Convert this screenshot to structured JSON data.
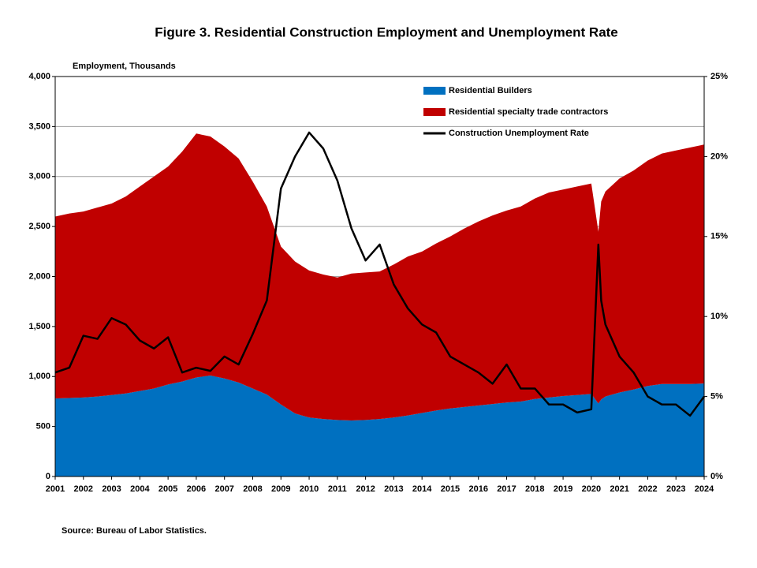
{
  "chart_data": {
    "type": "stacked-area-line",
    "title": "Figure 3. Residential Construction  Employment and Unemployment Rate",
    "y_label": "Employment, Thousands",
    "source": "Source: Bureau of Labor Statistics.",
    "x": [
      2001,
      2001.5,
      2002,
      2002.5,
      2003,
      2003.5,
      2004,
      2004.5,
      2005,
      2005.5,
      2006,
      2006.5,
      2007,
      2007.5,
      2008,
      2008.5,
      2009,
      2009.5,
      2010,
      2010.5,
      2011,
      2011.5,
      2012,
      2012.5,
      2013,
      2013.5,
      2014,
      2014.5,
      2015,
      2015.5,
      2016,
      2016.5,
      2017,
      2017.5,
      2018,
      2018.5,
      2019,
      2019.5,
      2020,
      2020.25,
      2020.35,
      2020.5,
      2021,
      2021.5,
      2022,
      2022.5,
      2023,
      2023.5,
      2024
    ],
    "series": [
      {
        "name": "Residential Builders",
        "color": "#0070c0",
        "kind": "area",
        "values": [
          780,
          785,
          790,
          800,
          815,
          830,
          855,
          880,
          920,
          950,
          990,
          1010,
          980,
          940,
          880,
          820,
          720,
          630,
          590,
          575,
          565,
          560,
          565,
          575,
          590,
          610,
          635,
          660,
          680,
          695,
          710,
          725,
          740,
          750,
          775,
          790,
          805,
          815,
          825,
          730,
          770,
          800,
          840,
          870,
          905,
          925,
          925,
          925,
          930
        ]
      },
      {
        "name": "Residential specialty trade contractors",
        "color": "#c00000",
        "kind": "area",
        "values": [
          1820,
          1845,
          1860,
          1890,
          1915,
          1970,
          2045,
          2120,
          2180,
          2300,
          2440,
          2390,
          2320,
          2240,
          2070,
          1880,
          1580,
          1520,
          1470,
          1445,
          1425,
          1470,
          1475,
          1475,
          1530,
          1590,
          1615,
          1670,
          1720,
          1785,
          1840,
          1885,
          1920,
          1950,
          2005,
          2050,
          2065,
          2085,
          2105,
          1720,
          1980,
          2050,
          2140,
          2190,
          2255,
          2305,
          2335,
          2365,
          2390
        ]
      },
      {
        "name": "Construction Unemployment Rate",
        "color": "#000000",
        "kind": "line",
        "axis": "y2",
        "values": [
          6.5,
          6.8,
          8.8,
          8.6,
          9.9,
          9.5,
          8.5,
          8.0,
          8.7,
          6.5,
          6.8,
          6.6,
          7.5,
          7.0,
          8.9,
          11.0,
          18.0,
          20.0,
          21.5,
          20.5,
          18.5,
          15.5,
          13.5,
          14.5,
          12.0,
          10.5,
          9.5,
          9.0,
          7.5,
          7.0,
          6.5,
          5.8,
          7.0,
          5.5,
          5.5,
          4.5,
          4.5,
          4.0,
          4.2,
          14.5,
          11.0,
          9.5,
          7.5,
          6.5,
          5.0,
          4.5,
          4.5,
          3.8,
          5.0
        ]
      }
    ],
    "xlim": [
      2001,
      2024
    ],
    "xticks": [
      2001,
      2002,
      2003,
      2004,
      2005,
      2006,
      2007,
      2008,
      2009,
      2010,
      2011,
      2012,
      2013,
      2014,
      2015,
      2016,
      2017,
      2018,
      2019,
      2020,
      2021,
      2022,
      2023,
      2024
    ],
    "ylim": [
      0,
      4000
    ],
    "yticks": [
      0,
      {
        "value": 500,
        "label": "500"
      },
      {
        "value": 1000,
        "label": "1,000"
      },
      {
        "value": 1500,
        "label": "1,500"
      },
      {
        "value": 2000,
        "label": "2,000"
      },
      {
        "value": 2500,
        "label": "2,500"
      },
      {
        "value": 3000,
        "label": "3,000"
      },
      {
        "value": 3500,
        "label": "3,500"
      },
      {
        "value": 4000,
        "label": "4,000"
      }
    ],
    "y2lim": [
      0,
      25
    ],
    "y2ticks": [
      {
        "value": 0,
        "label": "0%"
      },
      {
        "value": 5,
        "label": "5%"
      },
      {
        "value": 10,
        "label": "10%"
      },
      {
        "value": 15,
        "label": "15%"
      },
      {
        "value": 20,
        "label": "20%"
      },
      {
        "value": 25,
        "label": "25%"
      }
    ],
    "grid": true,
    "legend": "top-center"
  }
}
